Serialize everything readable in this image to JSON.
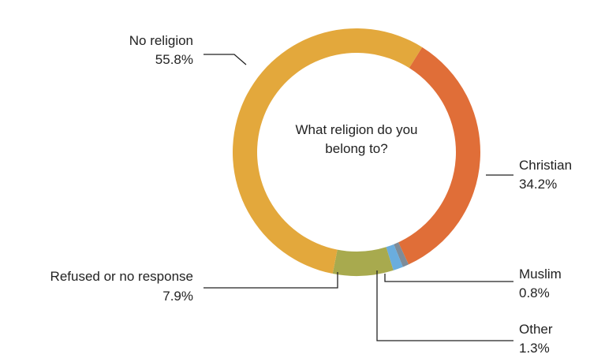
{
  "chart_data": {
    "type": "pie",
    "title": "What religion do you belong to?",
    "title_lines": [
      "What religion do you",
      "belong to?"
    ],
    "categories": [
      "No religion",
      "Christian",
      "Muslim",
      "Other",
      "Refused or no response"
    ],
    "values": [
      55.8,
      34.2,
      0.8,
      1.3,
      7.9
    ],
    "value_labels": [
      "55.8%",
      "34.2%",
      "0.8%",
      "1.3%",
      "7.9%"
    ],
    "colors": [
      "#E3A83C",
      "#E06E38",
      "#7E8C99",
      "#6AADDE",
      "#A8AA4E"
    ],
    "donut": true,
    "legend": "none"
  }
}
